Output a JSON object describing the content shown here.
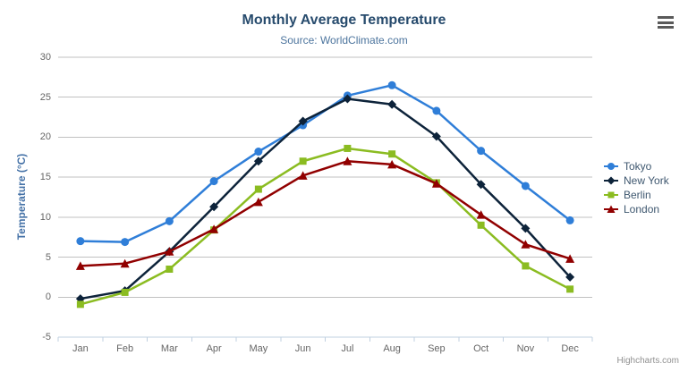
{
  "credits": {
    "label": "Highcharts.com"
  },
  "icons": {
    "context_menu": "hamburger-menu"
  },
  "chart_data": {
    "type": "line",
    "title": "Monthly Average Temperature",
    "subtitle": "Source: WorldClimate.com",
    "categories": [
      "Jan",
      "Feb",
      "Mar",
      "Apr",
      "May",
      "Jun",
      "Jul",
      "Aug",
      "Sep",
      "Oct",
      "Nov",
      "Dec"
    ],
    "series": [
      {
        "name": "Tokyo",
        "color": "#2f7ed8",
        "marker": "circle",
        "values": [
          7.0,
          6.9,
          9.5,
          14.5,
          18.2,
          21.5,
          25.2,
          26.5,
          23.3,
          18.3,
          13.9,
          9.6
        ]
      },
      {
        "name": "New York",
        "color": "#0d233a",
        "marker": "diamond",
        "values": [
          -0.2,
          0.8,
          5.7,
          11.3,
          17.0,
          22.0,
          24.8,
          24.1,
          20.1,
          14.1,
          8.6,
          2.5
        ]
      },
      {
        "name": "Berlin",
        "color": "#8bbc21",
        "marker": "square",
        "values": [
          -0.9,
          0.6,
          3.5,
          8.4,
          13.5,
          17.0,
          18.6,
          17.9,
          14.3,
          9.0,
          3.9,
          1.0
        ]
      },
      {
        "name": "London",
        "color": "#910000",
        "marker": "triangle",
        "values": [
          3.9,
          4.2,
          5.7,
          8.5,
          11.9,
          15.2,
          17.0,
          16.6,
          14.2,
          10.3,
          6.6,
          4.8
        ]
      }
    ],
    "xlabel": "",
    "ylabel": "Temperature (°C)",
    "ylim": [
      -5,
      30
    ],
    "ytick": 5,
    "grid": true,
    "legend_position": "right",
    "colors": {
      "grid_line": "#c0c0c0",
      "axis_line": "#c0d0e0",
      "tick_label": "#666666",
      "title_text": "#274b6d",
      "subtitle_text": "#4d759e",
      "axis_title_text": "#4572a7",
      "legend_text": "#3e576f",
      "credits_text": "#909090"
    }
  }
}
